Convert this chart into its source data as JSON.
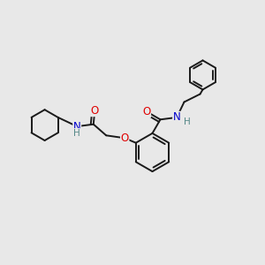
{
  "bg_color": "#e8e8e8",
  "bond_color": "#1a1a1a",
  "atom_colors": {
    "O": "#e00000",
    "N": "#0000cc",
    "H": "#888888"
  },
  "line_width": 1.4,
  "font_size_atom": 8.5,
  "fig_bg": "#e8e8e8"
}
